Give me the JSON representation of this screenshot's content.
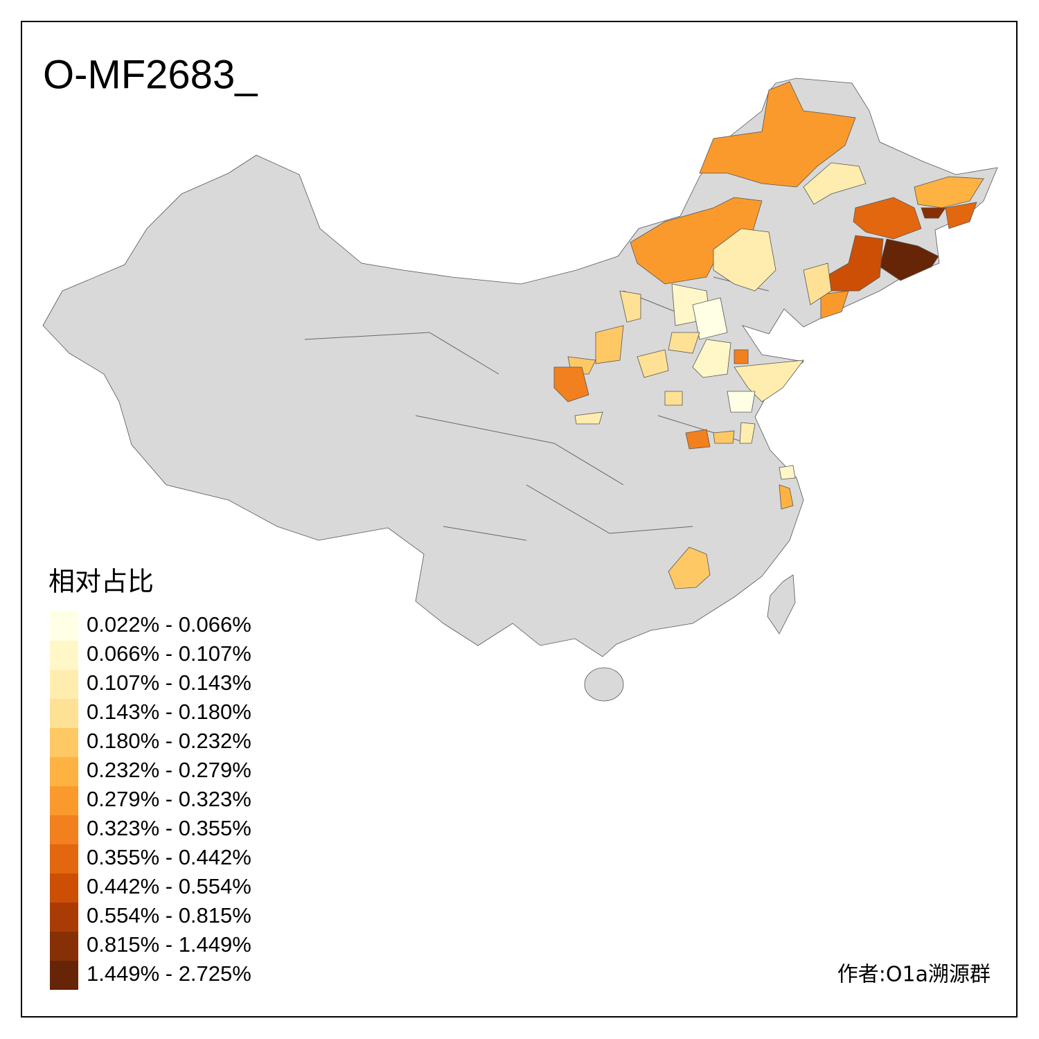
{
  "title": "O-MF2683_",
  "legend": {
    "title": "相对占比",
    "items": [
      {
        "label": "0.022% - 0.066%",
        "color": "#ffffe5"
      },
      {
        "label": "0.066% - 0.107%",
        "color": "#fff7c8"
      },
      {
        "label": "0.107% - 0.143%",
        "color": "#feedae"
      },
      {
        "label": "0.143% - 0.180%",
        "color": "#fee195"
      },
      {
        "label": "0.180% - 0.232%",
        "color": "#fec965"
      },
      {
        "label": "0.232% - 0.279%",
        "color": "#feb241"
      },
      {
        "label": "0.279% - 0.323%",
        "color": "#fb9a2c"
      },
      {
        "label": "0.323% - 0.355%",
        "color": "#f2801e"
      },
      {
        "label": "0.355% - 0.442%",
        "color": "#e3670f"
      },
      {
        "label": "0.442% - 0.554%",
        "color": "#cc4f05"
      },
      {
        "label": "0.554% - 0.815%",
        "color": "#a93c04"
      },
      {
        "label": "0.815% - 1.449%",
        "color": "#873005"
      },
      {
        "label": "1.449% - 2.725%",
        "color": "#662506"
      }
    ]
  },
  "credit": "作者:O1a溯源群"
}
